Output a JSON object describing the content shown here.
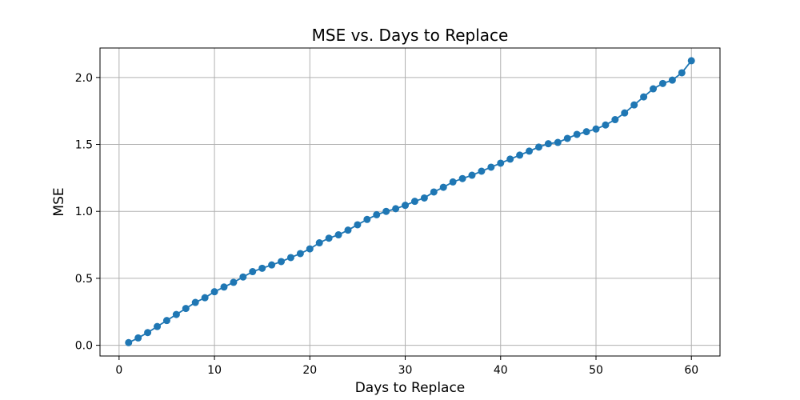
{
  "chart_data": {
    "type": "line",
    "title": "MSE vs. Days to Replace",
    "xlabel": "Days to Replace",
    "ylabel": "MSE",
    "xlim": [
      -2,
      63
    ],
    "ylim": [
      -0.08,
      2.22
    ],
    "xticks": [
      0,
      10,
      20,
      30,
      40,
      50,
      60
    ],
    "xtick_labels": [
      "0",
      "10",
      "20",
      "30",
      "40",
      "50",
      "60"
    ],
    "yticks": [
      0.0,
      0.5,
      1.0,
      1.5,
      2.0
    ],
    "ytick_labels": [
      "0.0",
      "0.5",
      "1.0",
      "1.5",
      "2.0"
    ],
    "grid": true,
    "line_color": "#1f77b4",
    "marker": "circle",
    "x": [
      1,
      2,
      3,
      4,
      5,
      6,
      7,
      8,
      9,
      10,
      11,
      12,
      13,
      14,
      15,
      16,
      17,
      18,
      19,
      20,
      21,
      22,
      23,
      24,
      25,
      26,
      27,
      28,
      29,
      30,
      31,
      32,
      33,
      34,
      35,
      36,
      37,
      38,
      39,
      40,
      41,
      42,
      43,
      44,
      45,
      46,
      47,
      48,
      49,
      50,
      51,
      52,
      53,
      54,
      55,
      56,
      57,
      58,
      59,
      60
    ],
    "y": [
      0.02,
      0.055,
      0.095,
      0.14,
      0.185,
      0.23,
      0.275,
      0.32,
      0.355,
      0.4,
      0.435,
      0.47,
      0.51,
      0.55,
      0.575,
      0.6,
      0.625,
      0.655,
      0.685,
      0.72,
      0.765,
      0.8,
      0.825,
      0.86,
      0.9,
      0.94,
      0.975,
      1.0,
      1.02,
      1.045,
      1.075,
      1.1,
      1.145,
      1.18,
      1.22,
      1.245,
      1.27,
      1.3,
      1.33,
      1.36,
      1.39,
      1.42,
      1.45,
      1.48,
      1.505,
      1.515,
      1.545,
      1.575,
      1.595,
      1.615,
      1.645,
      1.685,
      1.735,
      1.795,
      1.855,
      1.915,
      1.955,
      1.98,
      2.035,
      2.125
    ]
  }
}
